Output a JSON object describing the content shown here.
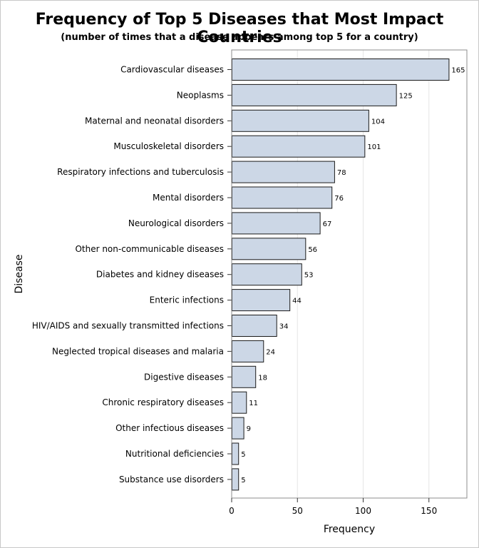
{
  "chart_data": {
    "type": "bar",
    "orientation": "horizontal",
    "title": "Frequency of Top 5 Diseases that Most Impact Countries",
    "subtitle": "(number of times that a disease appears among top 5 for a country)",
    "xlabel": "Frequency",
    "ylabel": "Disease",
    "xlim": [
      0,
      180
    ],
    "xticks": [
      0,
      50,
      100,
      150
    ],
    "grid": true,
    "bar_color": "#ccd7e6",
    "bar_edge_color": "#1a1a1a",
    "categories": [
      "Cardiovascular diseases",
      "Neoplasms",
      "Maternal and neonatal disorders",
      "Musculoskeletal disorders",
      "Respiratory infections and tuberculosis",
      "Mental disorders",
      "Neurological disorders",
      "Other non-communicable diseases",
      "Diabetes and kidney diseases",
      "Enteric infections",
      "HIV/AIDS and sexually transmitted infections",
      "Neglected tropical diseases and malaria",
      "Digestive diseases",
      "Chronic respiratory diseases",
      "Other infectious diseases",
      "Nutritional deficiencies",
      "Substance use disorders"
    ],
    "values": [
      165,
      125,
      104,
      101,
      78,
      76,
      67,
      56,
      53,
      44,
      34,
      24,
      18,
      11,
      9,
      5,
      5
    ]
  }
}
